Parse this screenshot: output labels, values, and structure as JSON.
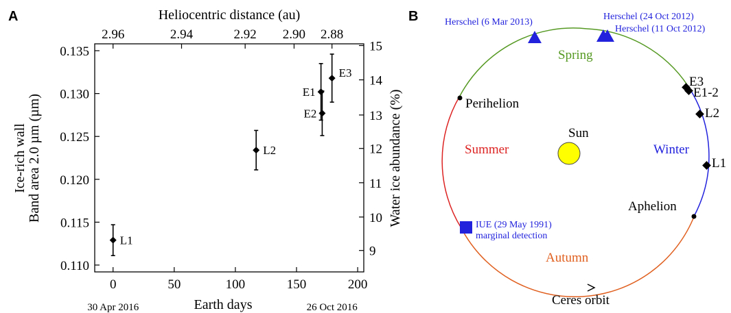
{
  "panels": {
    "a_letter": "A",
    "b_letter": "B"
  },
  "chart_data": [
    {
      "type": "scatter",
      "panel": "A",
      "xlabel": "Earth days",
      "ylabel_line1": "Ice-rich wall",
      "ylabel_line2": "Band area 2.0 µm (µm)",
      "y2label": "Water ice abundance (%)",
      "top_xlabel": "Heliocentric distance (au)",
      "xlim": [
        -15,
        205
      ],
      "ylim": [
        0.1092,
        0.1358
      ],
      "x_ticks": [
        0,
        50,
        100,
        150,
        200
      ],
      "x_tick_labels": [
        "0",
        "50",
        "100",
        "150",
        "200"
      ],
      "y_ticks": [
        0.11,
        0.115,
        0.12,
        0.125,
        0.13,
        0.135
      ],
      "y_tick_labels": [
        "0.110",
        "0.115",
        "0.120",
        "0.125",
        "0.130",
        "0.135"
      ],
      "y2_ticks": [
        {
          "label": "9",
          "y": 0.1117
        },
        {
          "label": "10",
          "y": 0.1156
        },
        {
          "label": "11",
          "y": 0.1196
        },
        {
          "label": "12",
          "y": 0.1236
        },
        {
          "label": "13",
          "y": 0.1275
        },
        {
          "label": "14",
          "y": 0.1316
        },
        {
          "label": "15",
          "y": 0.1356
        }
      ],
      "top_ticks": [
        {
          "label": "2.96",
          "x": 0
        },
        {
          "label": "2.94",
          "x": 56
        },
        {
          "label": "2.92",
          "x": 108
        },
        {
          "label": "2.90",
          "x": 148
        },
        {
          "label": "2.88",
          "x": 179
        }
      ],
      "x_date_labels": [
        {
          "label": "30 Apr 2016",
          "x": 0
        },
        {
          "label": "26 Oct 2016",
          "x": 179
        }
      ],
      "points": [
        {
          "label": "L1",
          "x": 0,
          "y": 0.1129,
          "err": 0.0018
        },
        {
          "label": "L2",
          "x": 117,
          "y": 0.1234,
          "err": 0.0023
        },
        {
          "label": "E1",
          "x": 170,
          "y": 0.1302,
          "err": 0.0033
        },
        {
          "label": "E2",
          "x": 171,
          "y": 0.1277,
          "err": 0.0026
        },
        {
          "label": "E3",
          "x": 179,
          "y": 0.1318,
          "err": 0.0028
        }
      ]
    },
    {
      "type": "diagram",
      "panel": "B",
      "title": "Ceres orbit",
      "center_label": "Sun",
      "season_labels": [
        {
          "label": "Spring",
          "color": "#559922"
        },
        {
          "label": "Summer",
          "color": "#dd2222"
        },
        {
          "label": "Winter",
          "color": "#2222dd"
        },
        {
          "label": "Autumn",
          "color": "#e06020"
        }
      ],
      "orbit_points": [
        {
          "label": "Perihelion"
        },
        {
          "label": "Aphelion"
        }
      ],
      "observation_points": [
        {
          "label": "E3"
        },
        {
          "label": "E1-2"
        },
        {
          "label": "L2"
        },
        {
          "label": "L1"
        }
      ],
      "herschel_labels": [
        "Herschel (6 Mar 2013)",
        "Herschel (24 Oct 2012)",
        "Herschel (11 Oct 2012)"
      ],
      "iue_label_line1": "IUE (29 May 1991)",
      "iue_label_line2": "marginal detection",
      "colors": {
        "spring": "#559922",
        "summer": "#dd2222",
        "winter": "#2222dd",
        "autumn": "#e06020",
        "observation": "#2222dd",
        "sun": "#ffff00"
      }
    }
  ]
}
